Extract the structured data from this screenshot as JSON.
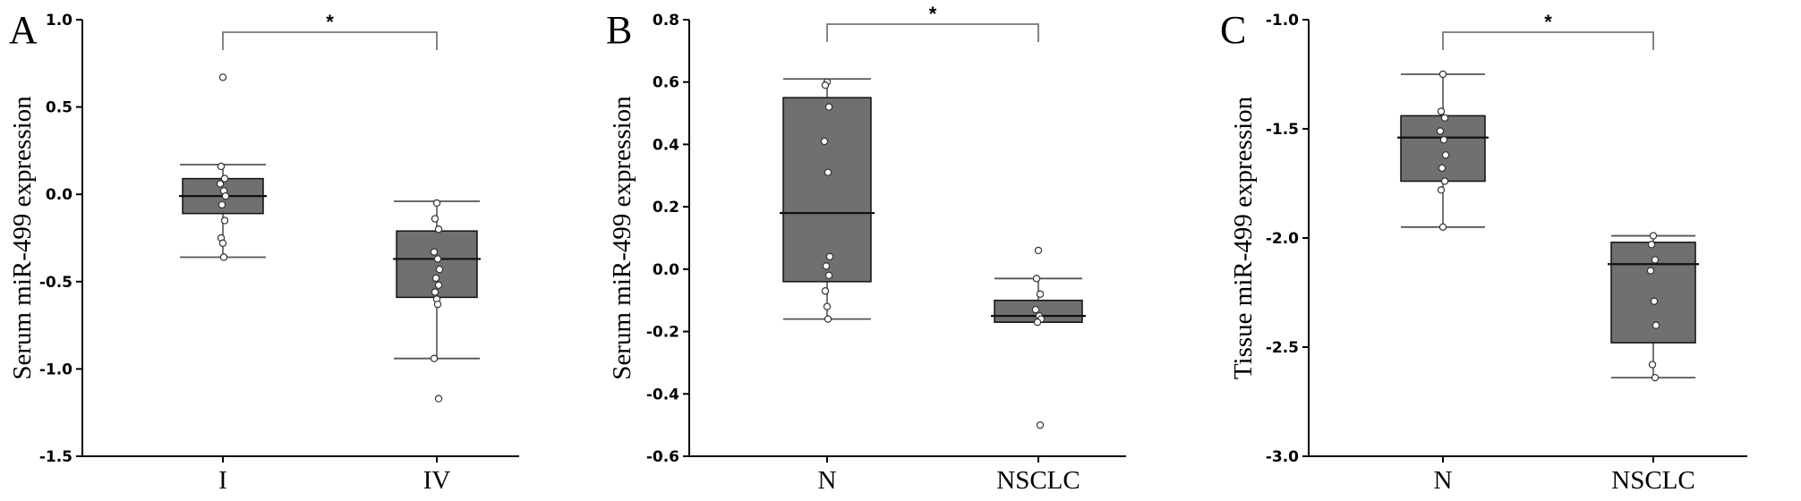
{
  "colors": {
    "box_fill": "#707070",
    "box_stroke": "#111111",
    "whisker": "#555555",
    "point_fill": "#ffffff",
    "bracket": "#777777"
  },
  "chart_data": [
    {
      "type": "box",
      "panel_label": "A",
      "ylabel": "Serum miR-499 expression",
      "categories": [
        "I",
        "IV"
      ],
      "ylim": [
        -1.5,
        1.0
      ],
      "yticks": [
        -1.5,
        -1.0,
        -0.5,
        0.0,
        0.5,
        1.0
      ],
      "ytick_labels": [
        "-1.5",
        "-1.0",
        "-0.5",
        "0.0",
        "0.5",
        "1.0"
      ],
      "significance": "*",
      "boxes": [
        {
          "name": "I",
          "whisker_low": -0.36,
          "q1": -0.11,
          "median": -0.01,
          "q3": 0.09,
          "whisker_high": 0.17,
          "points": [
            0.67,
            0.16,
            0.09,
            0.06,
            0.02,
            -0.01,
            -0.06,
            -0.15,
            -0.25,
            -0.28,
            -0.36
          ]
        },
        {
          "name": "IV",
          "whisker_low": -0.94,
          "q1": -0.59,
          "median": -0.37,
          "q3": -0.21,
          "whisker_high": -0.04,
          "points": [
            -0.05,
            -0.14,
            -0.2,
            -0.33,
            -0.37,
            -0.43,
            -0.48,
            -0.52,
            -0.56,
            -0.6,
            -0.63,
            -0.94,
            -1.17
          ]
        }
      ]
    },
    {
      "type": "box",
      "panel_label": "B",
      "ylabel": "Serum miR-499 expression",
      "categories": [
        "N",
        "NSCLC"
      ],
      "ylim": [
        -0.6,
        0.8
      ],
      "yticks": [
        -0.6,
        -0.4,
        -0.2,
        0.0,
        0.2,
        0.4,
        0.6,
        0.8
      ],
      "ytick_labels": [
        "-0.6",
        "-0.4",
        "-0.2",
        "0.0",
        "0.2",
        "0.4",
        "0.6",
        "0.8"
      ],
      "significance": "*",
      "boxes": [
        {
          "name": "N",
          "whisker_low": -0.16,
          "q1": -0.04,
          "median": 0.18,
          "q3": 0.55,
          "whisker_high": 0.61,
          "points": [
            0.6,
            0.59,
            0.52,
            0.41,
            0.31,
            0.04,
            0.01,
            -0.02,
            -0.07,
            -0.12,
            -0.16
          ]
        },
        {
          "name": "NSCLC",
          "whisker_low": -0.17,
          "q1": -0.17,
          "median": -0.15,
          "q3": -0.1,
          "whisker_high": -0.03,
          "points": [
            0.06,
            -0.03,
            -0.08,
            -0.13,
            -0.15,
            -0.16,
            -0.17,
            -0.5
          ]
        }
      ]
    },
    {
      "type": "box",
      "panel_label": "C",
      "ylabel": "Tissue miR-499 expression",
      "categories": [
        "N",
        "NSCLC"
      ],
      "ylim": [
        -3.0,
        -1.0
      ],
      "yticks": [
        -3.0,
        -2.5,
        -2.0,
        -1.5,
        -1.0
      ],
      "ytick_labels": [
        "-3.0",
        "-2.5",
        "-2.0",
        "-1.5",
        "-1.0"
      ],
      "significance": "*",
      "boxes": [
        {
          "name": "N",
          "whisker_low": -1.95,
          "q1": -1.74,
          "median": -1.54,
          "q3": -1.44,
          "whisker_high": -1.25,
          "points": [
            -1.25,
            -1.42,
            -1.45,
            -1.51,
            -1.55,
            -1.62,
            -1.68,
            -1.74,
            -1.78,
            -1.95
          ]
        },
        {
          "name": "NSCLC",
          "whisker_low": -2.64,
          "q1": -2.48,
          "median": -2.12,
          "q3": -2.02,
          "whisker_high": -1.99,
          "points": [
            -1.99,
            -2.03,
            -2.1,
            -2.15,
            -2.29,
            -2.4,
            -2.58,
            -2.64
          ]
        }
      ]
    }
  ]
}
